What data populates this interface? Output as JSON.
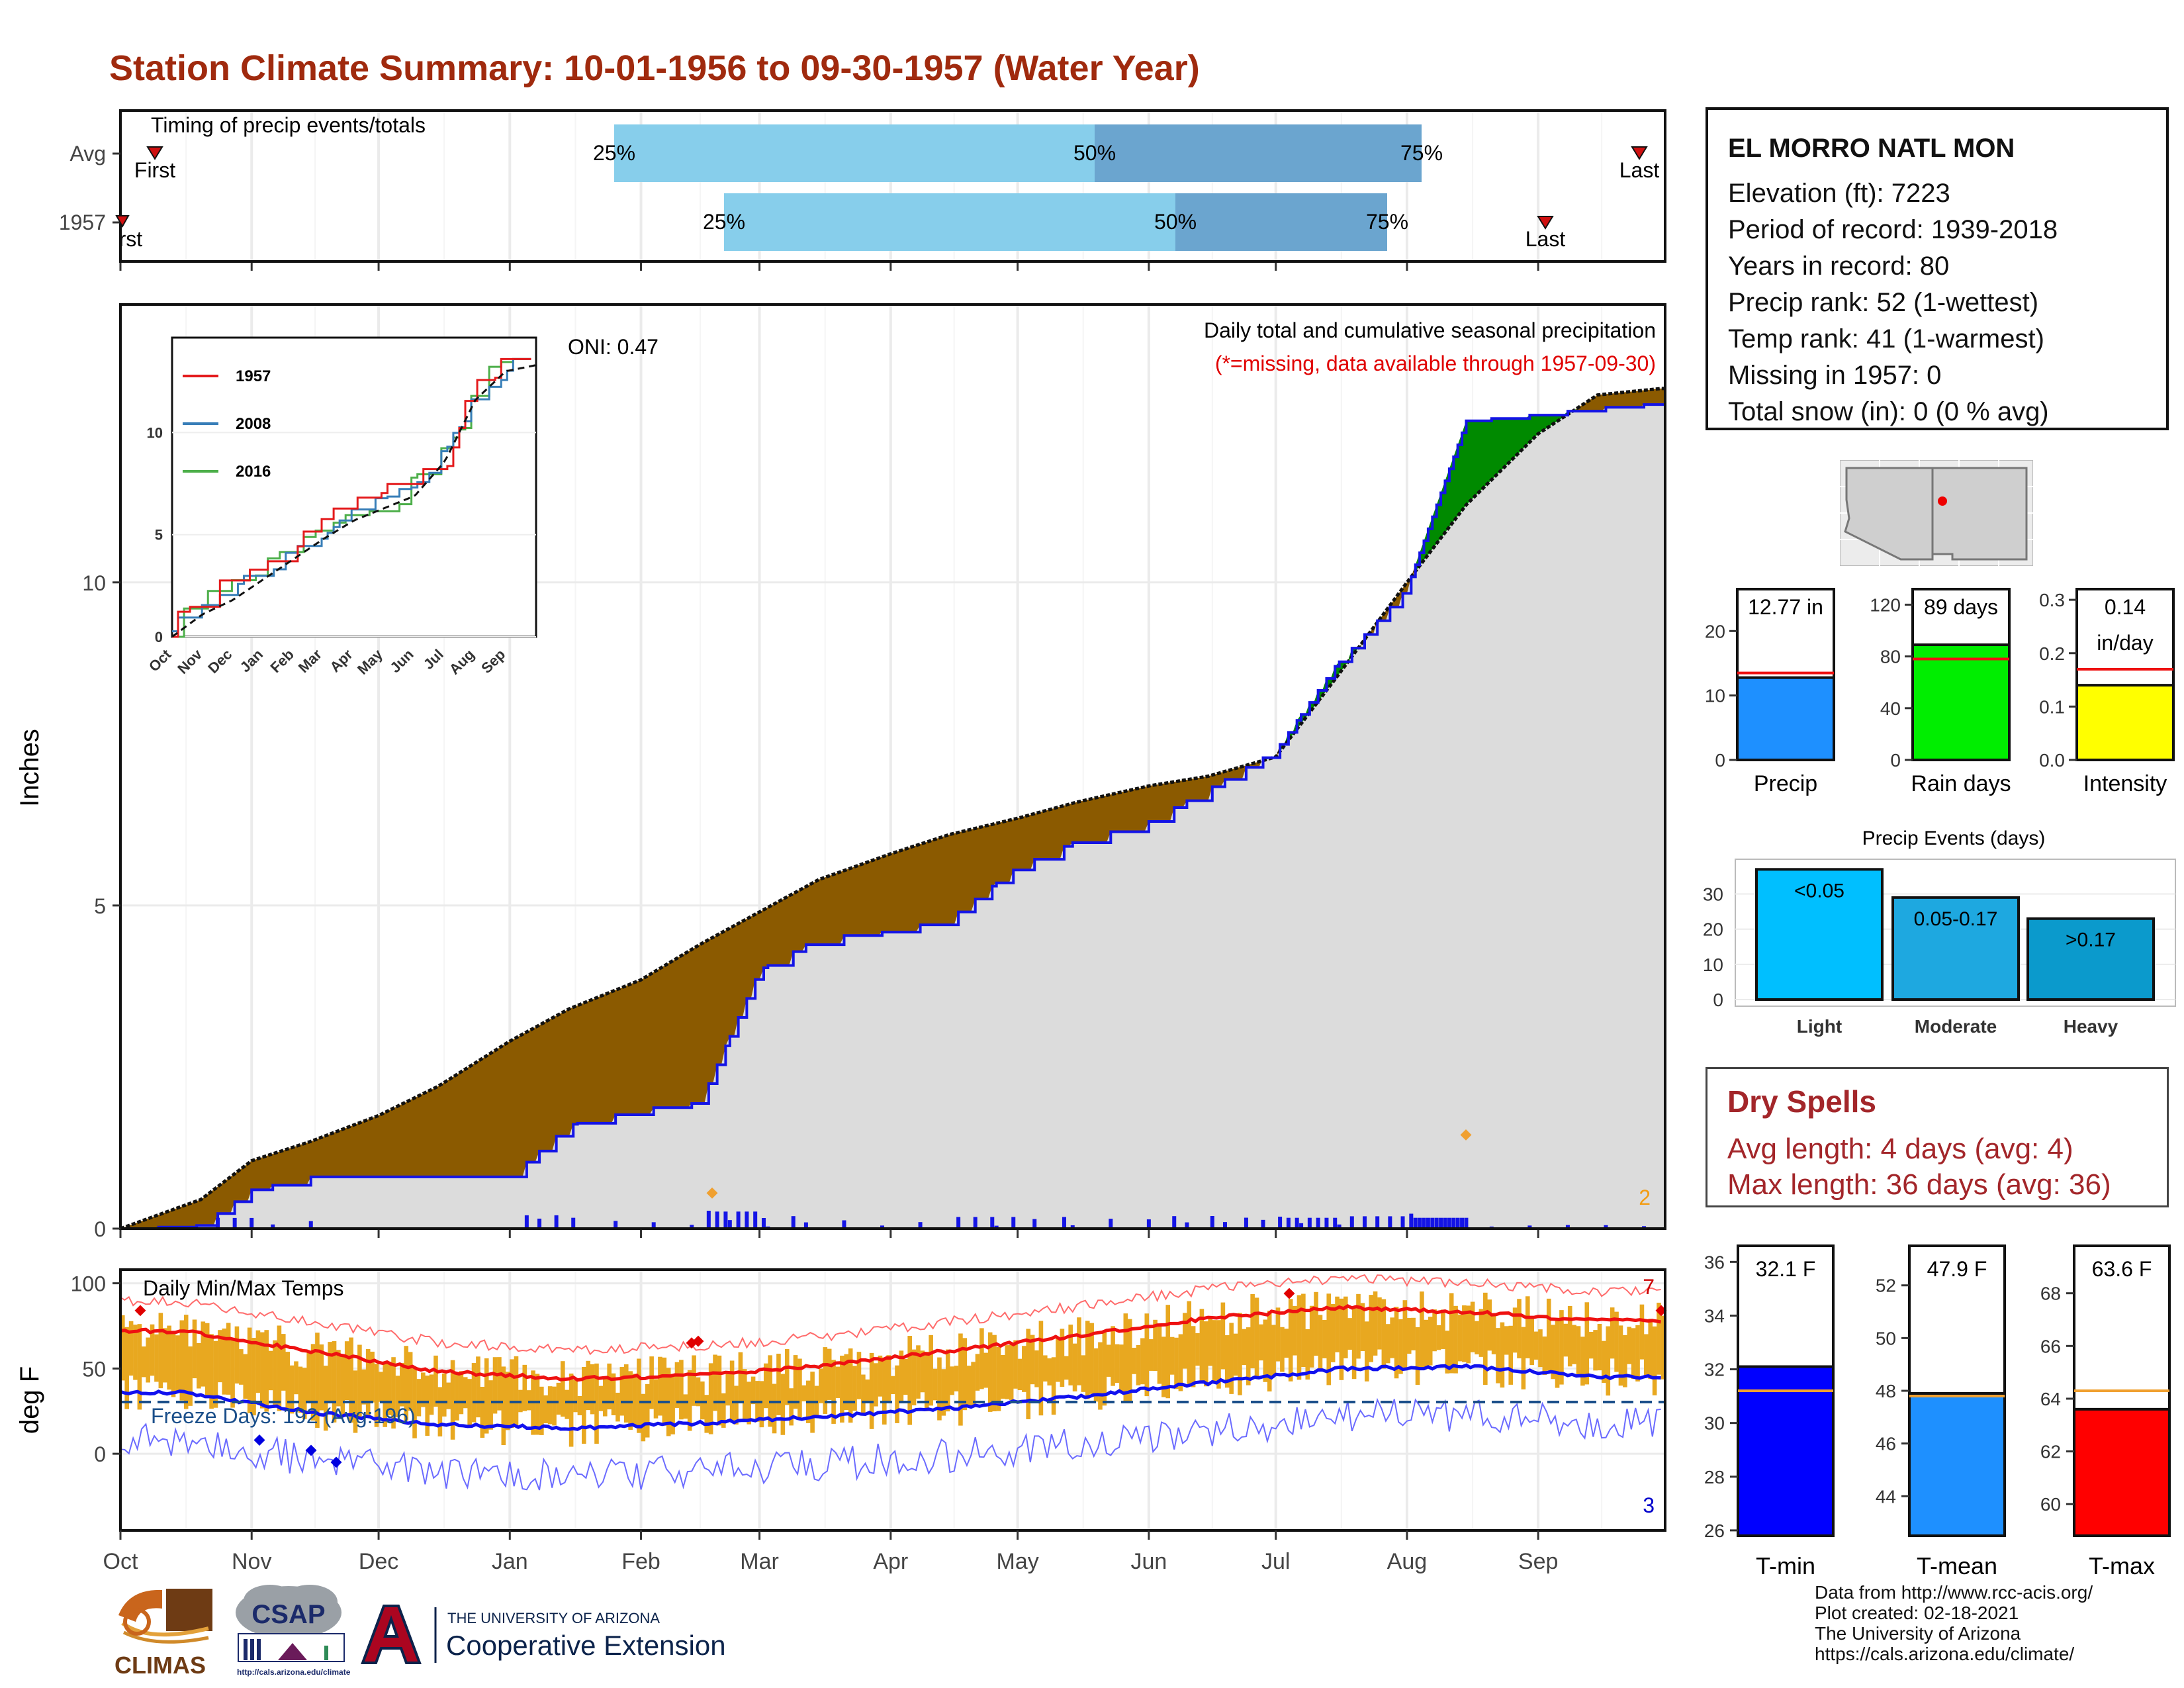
{
  "title": "Station Climate Summary: 10-01-1956 to 09-30-1957 (Water Year)",
  "timing": {
    "caption": "Timing of precip events/totals",
    "rows": [
      {
        "label": "Avg",
        "first_label": "First",
        "last_label": "Last",
        "p25": "25%",
        "p50": "50%",
        "p75": "75%"
      },
      {
        "label": "1957",
        "first_label": "First",
        "last_label": "Last",
        "p25": "25%",
        "p50": "50%",
        "p75": "75%"
      }
    ]
  },
  "months": [
    "Oct",
    "Nov",
    "Dec",
    "Jan",
    "Feb",
    "Mar",
    "Apr",
    "May",
    "Jun",
    "Jul",
    "Aug",
    "Sep"
  ],
  "precip_panel": {
    "ylabel": "Inches",
    "ticks": [
      "0",
      "5",
      "10"
    ],
    "annotation_title": "Daily total and cumulative seasonal precipitation",
    "annotation_missing": "(*=missing, data available through 1957-09-30)",
    "oni": "ONI: 0.47",
    "corner_count": "2"
  },
  "inset": {
    "legend": [
      {
        "name": "1957",
        "color": "#e41a1c"
      },
      {
        "name": "2008",
        "color": "#377eb8"
      },
      {
        "name": "2016",
        "color": "#4daf4a"
      }
    ],
    "yticks": [
      "0",
      "5",
      "10"
    ],
    "xticks": [
      "Oct",
      "Nov",
      "Dec",
      "Jan",
      "Feb",
      "Mar",
      "Apr",
      "May",
      "Jun",
      "Jul",
      "Aug",
      "Sep"
    ]
  },
  "temp_panel": {
    "ylabel": "deg F",
    "caption": "Daily Min/Max Temps",
    "freeze": "Freeze Days: 192 (Avg:196)",
    "ticks": [
      "0",
      "50",
      "100"
    ],
    "count_max": "7",
    "count_min": "3"
  },
  "station": {
    "name": "EL MORRO NATL MON",
    "lines": [
      "Elevation (ft): 7223",
      "Period of record: 1939-2018",
      "Years in record: 80",
      "Precip rank: 52 (1-wettest)",
      "Temp rank: 41 (1-warmest)",
      "Missing in 1957: 0",
      "Total snow (in): 0 (0 % avg)"
    ]
  },
  "summary_bars": [
    {
      "label": "Precip",
      "value_text": "12.77 in",
      "ticks": [
        "0",
        "10",
        "20"
      ],
      "color": "#1e90ff"
    },
    {
      "label": "Rain days",
      "value_text": "89 days",
      "ticks": [
        "0",
        "40",
        "80",
        "120"
      ],
      "color": "#00ee00"
    },
    {
      "label": "Intensity",
      "value_text": "0.14",
      "value_text2": "in/day",
      "ticks": [
        "0.0",
        "0.1",
        "0.2",
        "0.3"
      ],
      "color": "#ffff00"
    }
  ],
  "events": {
    "title": "Precip Events (days)",
    "ticks": [
      "0",
      "10",
      "20",
      "30"
    ],
    "bars": [
      {
        "label": "Light",
        "range": "<0.05"
      },
      {
        "label": "Moderate",
        "range": "0.05-0.17"
      },
      {
        "label": "Heavy",
        "range": ">0.17"
      }
    ]
  },
  "dry_spells": {
    "title": "Dry Spells",
    "avg": "Avg length: 4 days (avg: 4)",
    "max": "Max length: 36 days (avg: 36)"
  },
  "temp_bars": [
    {
      "label": "T-min",
      "value_text": "32.1 F",
      "ticks": [
        "26",
        "28",
        "30",
        "32",
        "34",
        "36"
      ],
      "color": "#0000ff"
    },
    {
      "label": "T-mean",
      "value_text": "47.9 F",
      "ticks": [
        "44",
        "46",
        "48",
        "50",
        "52"
      ],
      "color": "#1e90ff"
    },
    {
      "label": "T-max",
      "value_text": "63.6 F",
      "ticks": [
        "60",
        "62",
        "64",
        "66",
        "68"
      ],
      "color": "#ff0000"
    }
  ],
  "credits": [
    "Data from http://www.rcc-acis.org/",
    "Plot created: 02-18-2021",
    "The University of Arizona",
    "https://cals.arizona.edu/climate/"
  ],
  "logos": {
    "climas": "CLIMAS",
    "csap": "CSAP",
    "csap_url": "http://cals.arizona.edu/climate",
    "ua_top": "THE UNIVERSITY OF ARIZONA",
    "ua_bottom": "Cooperative Extension"
  },
  "chart_data": [
    {
      "type": "bar",
      "title": "Timing of precip events/totals",
      "categories": [
        "Avg",
        "1957"
      ],
      "series": [
        {
          "name": "25%",
          "values": [
            "1957-01-25",
            "1957-02-20"
          ]
        },
        {
          "name": "50%",
          "values": [
            "1957-05-18",
            "1957-06-23"
          ]
        },
        {
          "name": "75%",
          "values": [
            "1957-08-12",
            "1957-08-04"
          ]
        },
        {
          "name": "First",
          "values": [
            "1956-10-08",
            "1956-09-30"
          ]
        },
        {
          "name": "Last",
          "values": [
            "1957-09-26",
            "1957-08-31"
          ]
        }
      ]
    },
    {
      "type": "area",
      "title": "Daily total and cumulative seasonal precipitation",
      "ylabel": "Inches",
      "ylim": [
        0,
        14.3
      ],
      "x": [
        "1956-10-01",
        "1956-10-20",
        "1956-11-01",
        "1956-11-15",
        "1956-12-01",
        "1956-12-15",
        "1957-01-01",
        "1957-01-15",
        "1957-02-01",
        "1957-02-15",
        "1957-03-01",
        "1957-03-15",
        "1957-04-01",
        "1957-04-15",
        "1957-05-01",
        "1957-05-15",
        "1957-06-01",
        "1957-06-15",
        "1957-07-01",
        "1957-07-15",
        "1957-08-01",
        "1957-08-15",
        "1957-09-01",
        "1957-09-15",
        "1957-09-30"
      ],
      "series": [
        {
          "name": "Average",
          "values": [
            0.0,
            0.45,
            1.05,
            1.35,
            1.75,
            2.2,
            2.9,
            3.4,
            3.85,
            4.4,
            4.9,
            5.4,
            5.8,
            6.1,
            6.35,
            6.6,
            6.85,
            7.0,
            7.3,
            8.5,
            10.0,
            11.2,
            12.3,
            12.9,
            13.0
          ],
          "unit": "in"
        },
        {
          "name": "1957",
          "values": [
            0.0,
            0.05,
            0.6,
            0.8,
            0.8,
            0.8,
            0.8,
            1.6,
            1.85,
            1.95,
            4.0,
            4.5,
            4.6,
            4.8,
            5.6,
            6.0,
            6.3,
            6.8,
            7.4,
            8.7,
            9.9,
            12.5,
            12.6,
            12.7,
            12.77
          ],
          "unit": "in"
        }
      ]
    },
    {
      "type": "line",
      "title": "Daily Min/Max Temps",
      "ylabel": "deg F",
      "ylim": [
        -40,
        105
      ],
      "x": [
        "Oct",
        "Nov",
        "Dec",
        "Jan",
        "Feb",
        "Mar",
        "Apr",
        "May",
        "Jun",
        "Jul",
        "Aug",
        "Sep"
      ],
      "series": [
        {
          "name": "Avg max",
          "values": [
            72,
            60,
            48,
            44,
            46,
            52,
            61,
            70,
            80,
            86,
            83,
            78
          ]
        },
        {
          "name": "Avg min",
          "values": [
            36,
            24,
            17,
            15,
            18,
            22,
            27,
            34,
            42,
            50,
            51,
            45
          ]
        }
      ]
    },
    {
      "type": "bar",
      "categories": [
        "Precip",
        "Rain days",
        "Intensity"
      ],
      "series": [
        {
          "name": "1957",
          "values": [
            12.77,
            89,
            0.14
          ]
        },
        {
          "name": "Average",
          "values": [
            13.5,
            78,
            0.17
          ]
        }
      ]
    },
    {
      "type": "bar",
      "title": "Precip Events (days)",
      "categories": [
        "Light",
        "Moderate",
        "Heavy"
      ],
      "values": [
        37,
        29,
        23
      ]
    },
    {
      "type": "bar",
      "categories": [
        "T-min",
        "T-mean",
        "T-max"
      ],
      "series": [
        {
          "name": "1957",
          "values": [
            32.1,
            47.9,
            63.6
          ]
        },
        {
          "name": "Average",
          "values": [
            31.2,
            47.8,
            64.3
          ]
        }
      ]
    }
  ]
}
